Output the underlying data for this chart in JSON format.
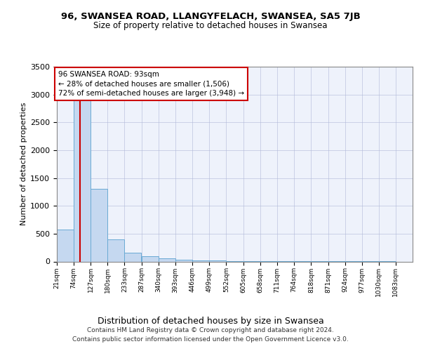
{
  "title": "96, SWANSEA ROAD, LLANGYFELACH, SWANSEA, SA5 7JB",
  "subtitle": "Size of property relative to detached houses in Swansea",
  "xlabel": "Distribution of detached houses by size in Swansea",
  "ylabel": "Number of detached properties",
  "bar_edges": [
    21,
    74,
    127,
    180,
    233,
    287,
    340,
    393,
    446,
    499,
    552,
    605,
    658,
    711,
    764,
    818,
    871,
    924,
    977,
    1030,
    1083
  ],
  "bar_heights": [
    580,
    2890,
    1305,
    400,
    155,
    90,
    55,
    35,
    20,
    15,
    10,
    8,
    6,
    5,
    4,
    3,
    3,
    2,
    2,
    2,
    0
  ],
  "bar_color": "#c5d8f0",
  "bar_edge_color": "#6aaad4",
  "property_size": 93,
  "pct_smaller": "28%",
  "n_smaller": "1,506",
  "pct_larger_semi": "72%",
  "n_larger_semi": "3,948",
  "annotation_line_color": "#cc0000",
  "annotation_box_edge_color": "#cc0000",
  "ylim": [
    0,
    3500
  ],
  "yticks": [
    0,
    500,
    1000,
    1500,
    2000,
    2500,
    3000,
    3500
  ],
  "tick_labels": [
    "21sqm",
    "74sqm",
    "127sqm",
    "180sqm",
    "233sqm",
    "287sqm",
    "340sqm",
    "393sqm",
    "446sqm",
    "499sqm",
    "552sqm",
    "605sqm",
    "658sqm",
    "711sqm",
    "764sqm",
    "818sqm",
    "871sqm",
    "924sqm",
    "977sqm",
    "1030sqm",
    "1083sqm"
  ],
  "footer_line1": "Contains HM Land Registry data © Crown copyright and database right 2024.",
  "footer_line2": "Contains public sector information licensed under the Open Government Licence v3.0.",
  "bg_color": "#eef2fb",
  "grid_color": "#b0b8d8"
}
